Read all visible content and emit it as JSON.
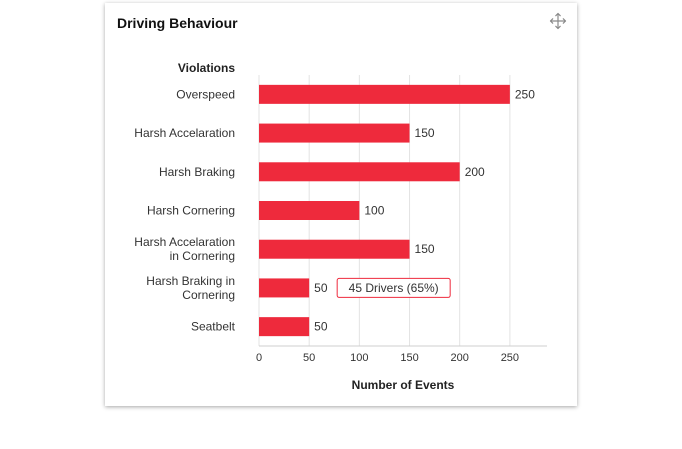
{
  "widget": {
    "title": "Driving Behaviour",
    "expand_icon": "expand-arrows-icon"
  },
  "chart_data": {
    "type": "bar",
    "orientation": "horizontal",
    "category_header": "Violations",
    "categories": [
      [
        "Overspeed"
      ],
      [
        "Harsh Accelaration"
      ],
      [
        "Harsh Braking"
      ],
      [
        "Harsh Cornering"
      ],
      [
        "Harsh Accelaration",
        "in Cornering"
      ],
      [
        "Harsh Braking in",
        "Cornering"
      ],
      [
        "Seatbelt"
      ]
    ],
    "values": [
      250,
      150,
      200,
      100,
      150,
      50,
      50
    ],
    "xlabel": "Number of Events",
    "xticks": [
      0,
      50,
      100,
      150,
      200,
      250
    ],
    "xlim": [
      0,
      287
    ],
    "grid": "vertical",
    "bar_color": "#ee2a3c",
    "tooltip": {
      "category_index": 5,
      "text": "45 Drivers (65%)",
      "border_color": "#ee2a3c"
    }
  }
}
